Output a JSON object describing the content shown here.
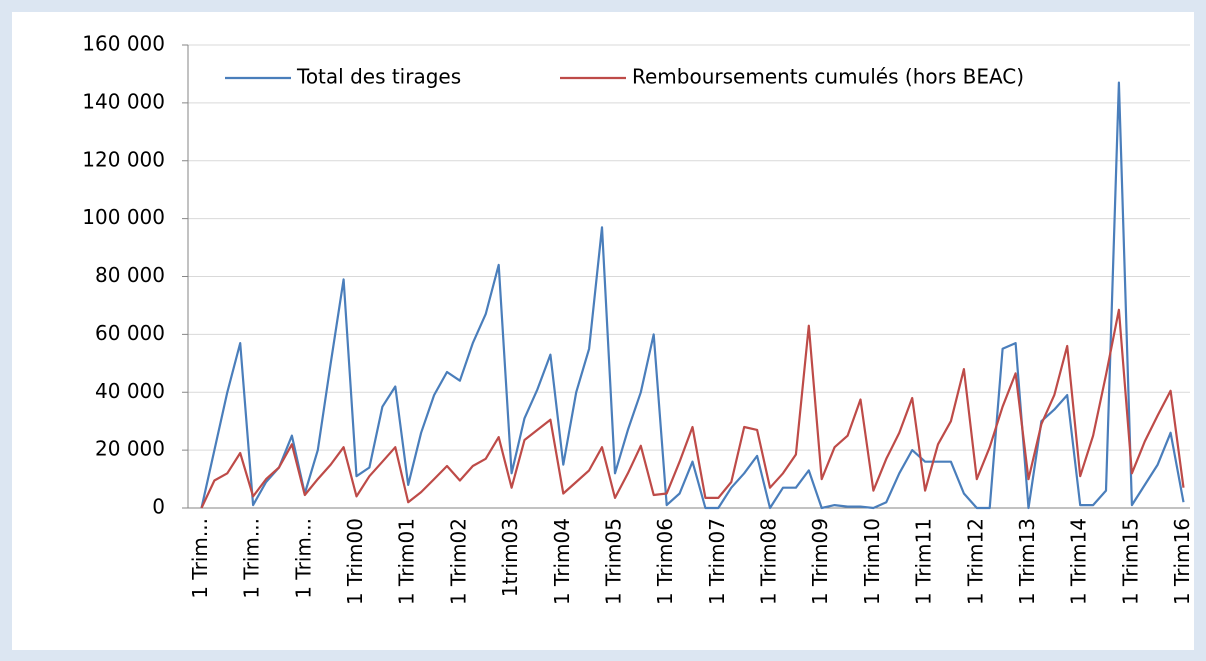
{
  "chart_data": {
    "type": "line",
    "categories": [
      "1 Trim...",
      null,
      null,
      null,
      "1 Trim...",
      null,
      null,
      null,
      "1 Trim...",
      null,
      null,
      null,
      "1 Trim00",
      null,
      null,
      null,
      "1 Trim01",
      null,
      null,
      null,
      "1 Trim02",
      null,
      null,
      null,
      "1trim03",
      null,
      null,
      null,
      "1 Trim04",
      null,
      null,
      null,
      "1 Trim05",
      null,
      null,
      null,
      "1 Trim06",
      null,
      null,
      null,
      "1 Trim07",
      null,
      null,
      null,
      "1 Trim08",
      null,
      null,
      null,
      "1 Trim09",
      null,
      null,
      null,
      "1 Trim10",
      null,
      null,
      null,
      "1 Trim11",
      null,
      null,
      null,
      "1 Trim12",
      null,
      null,
      null,
      "1 Trim13",
      null,
      null,
      null,
      "1 Trim14",
      null,
      null,
      null,
      "1 Trim15",
      null,
      null,
      null,
      "1 Trim16"
    ],
    "series": [
      {
        "name": "Total des tirages",
        "color": "#4a7ebb",
        "values": [
          0,
          20000,
          40000,
          57000,
          1000,
          9000,
          14000,
          25000,
          5000,
          20000,
          50000,
          79000,
          11000,
          14000,
          35000,
          42000,
          8000,
          26000,
          39000,
          47000,
          44000,
          57000,
          67000,
          84000,
          12000,
          31000,
          41000,
          53000,
          15000,
          40000,
          55000,
          97000,
          12000,
          27000,
          40000,
          60000,
          1000,
          5000,
          16000,
          0,
          0,
          7000,
          12000,
          18000,
          0,
          7000,
          7000,
          13000,
          0,
          1000,
          500,
          500,
          0,
          2000,
          12000,
          20000,
          16000,
          16000,
          16000,
          5000,
          0,
          0,
          55000,
          57000,
          0,
          30000,
          34000,
          39000,
          1000,
          1000,
          6000,
          147000,
          1000,
          8000,
          15000,
          26000,
          2000
        ]
      },
      {
        "name": "Remboursements cumulés (hors BEAC)",
        "color": "#be4b48",
        "values": [
          0,
          9500,
          12000,
          19000,
          4000,
          10000,
          14000,
          22000,
          4500,
          10000,
          15000,
          21000,
          4000,
          11000,
          16000,
          21000,
          2000,
          5500,
          10000,
          14500,
          9500,
          14500,
          17000,
          24500,
          7000,
          23500,
          27000,
          30500,
          5000,
          9000,
          13000,
          21000,
          3500,
          12000,
          21500,
          4500,
          5000,
          16000,
          28000,
          3500,
          3500,
          9000,
          28000,
          27000,
          7000,
          12000,
          18500,
          63000,
          10000,
          21000,
          25000,
          37500,
          6000,
          17000,
          26000,
          38000,
          6000,
          22000,
          30000,
          48000,
          10000,
          21000,
          35000,
          46500,
          10000,
          29000,
          39000,
          56000,
          11000,
          25000,
          46000,
          68500,
          12000,
          23000,
          32000,
          40500,
          7000
        ]
      }
    ],
    "ylim": [
      0,
      160000
    ],
    "yticks": [
      0,
      {
        "value": 20000,
        "label": "20 000"
      },
      {
        "value": 40000,
        "label": "40 000"
      },
      {
        "value": 60000,
        "label": "60 000"
      },
      {
        "value": 80000,
        "label": "80 000"
      },
      {
        "value": 100000,
        "label": "100 000"
      },
      {
        "value": 120000,
        "label": "120 000"
      },
      {
        "value": 140000,
        "label": "140 000"
      },
      {
        "value": 160000,
        "label": "160 000"
      }
    ],
    "grid": true,
    "legend": "top"
  }
}
